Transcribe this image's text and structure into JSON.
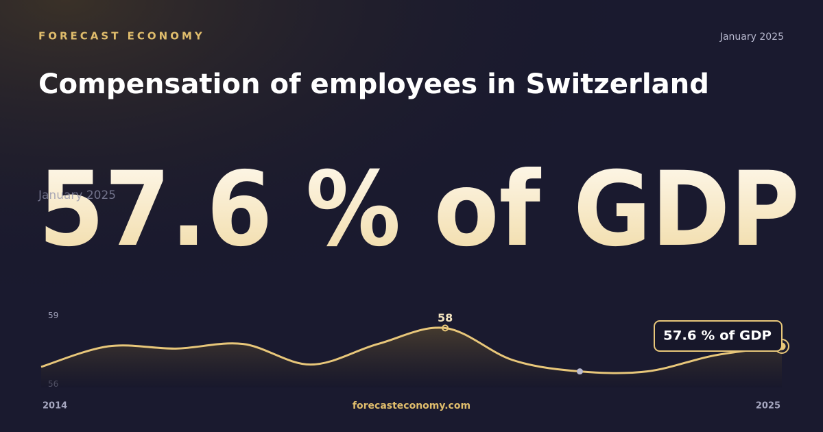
{
  "brand": "FORECAST ECONOMY",
  "date": "January 2025",
  "title": "Compensation of employees in Switzerland",
  "headline": "57.6 % of GDP",
  "footer": "forecasteconomy.com",
  "chart_data": {
    "type": "line",
    "x": [
      2014,
      2015,
      2016,
      2017,
      2018,
      2019,
      2020,
      2021,
      2022,
      2023,
      2024,
      2025
    ],
    "xlim": [
      2014,
      2025
    ],
    "xticks": [
      2014,
      2025
    ],
    "series": [
      {
        "color": "#e8c77a",
        "values": [
          56.7,
          57.6,
          57.5,
          57.7,
          56.8,
          57.7,
          58.4,
          57.0,
          56.5,
          56.5,
          57.2,
          57.6
        ],
        "value_labels": [
          null,
          null,
          null,
          null,
          null,
          null,
          "58",
          null,
          null,
          null,
          null,
          "57.6 % of GDP"
        ]
      }
    ],
    "ylim": [
      55.8,
      59.1
    ],
    "yticks": [
      56,
      59
    ]
  }
}
